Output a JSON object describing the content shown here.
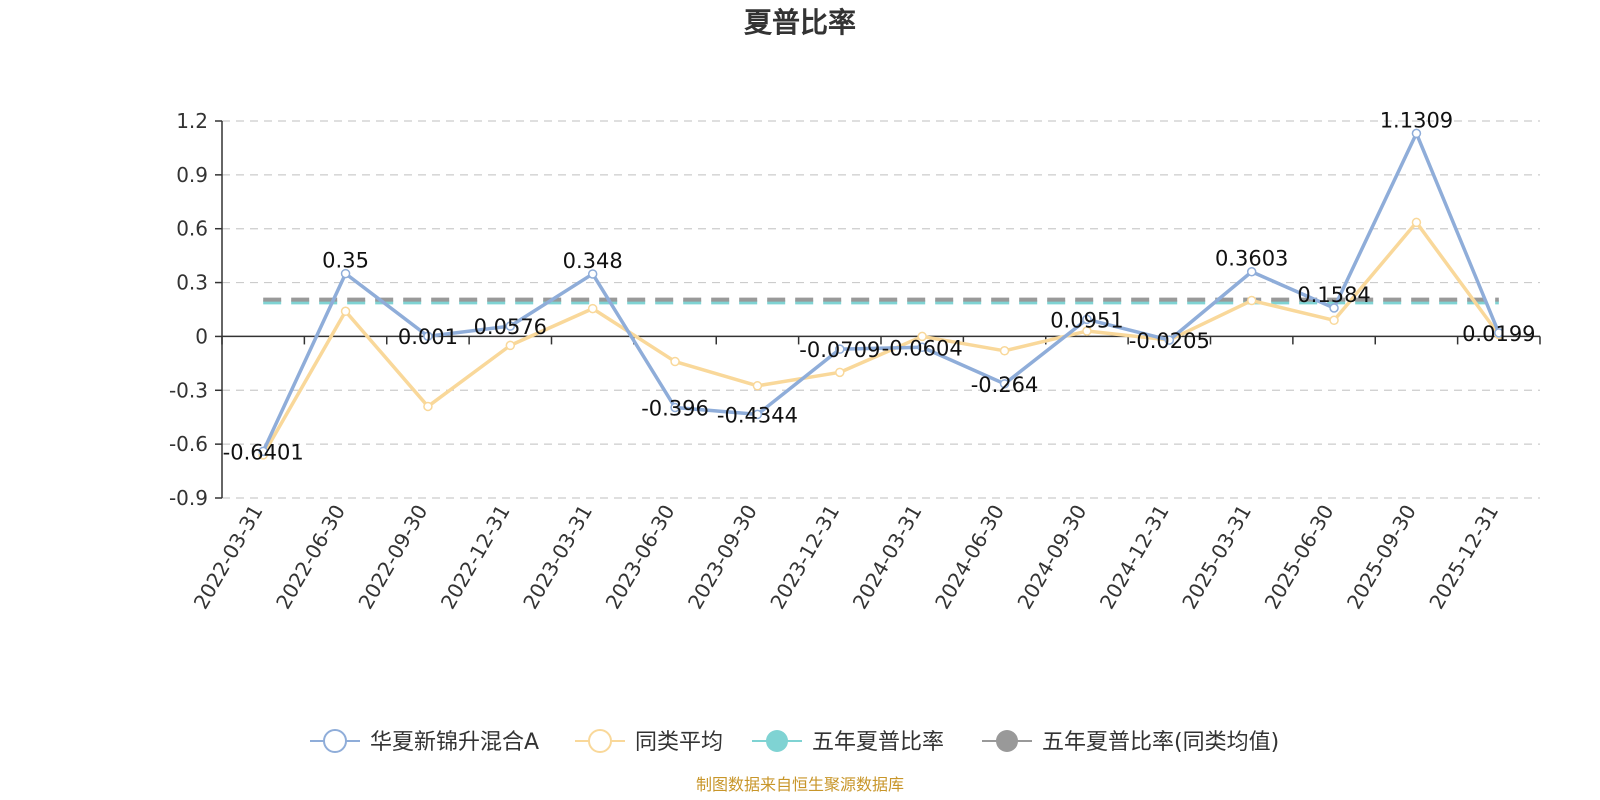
{
  "chart_data": {
    "type": "line",
    "title": "夏普比率",
    "categories": [
      "2022-03-31",
      "2022-06-30",
      "2022-09-30",
      "2022-12-31",
      "2023-03-31",
      "2023-06-30",
      "2023-09-30",
      "2023-12-31",
      "2024-03-31",
      "2024-06-30",
      "2024-09-30",
      "2024-12-31",
      "2025-03-31",
      "2025-06-30",
      "2025-09-30",
      "2025-12-31"
    ],
    "yticks": [
      "1.2",
      "0.9",
      "0.6",
      "0.3",
      "0",
      "-0.3",
      "-0.6",
      "-0.9"
    ],
    "ylim": [
      -0.9,
      1.2
    ],
    "grid": true,
    "legend_position": "bottom",
    "series": [
      {
        "name": "华夏新锦升混合A",
        "color": "#8fadd9",
        "values": [
          -0.6401,
          0.35,
          0.001,
          0.0576,
          0.348,
          -0.396,
          -0.4344,
          -0.0709,
          -0.0604,
          -0.264,
          0.0951,
          -0.0205,
          0.3603,
          0.1584,
          1.1309,
          0.0199
        ],
        "labels": [
          "-0.6401",
          "0.35",
          "0.001",
          "0.0576",
          "0.348",
          "-0.396",
          "-0.4344",
          "-0.0709",
          "-0.0604",
          "-0.264",
          "0.0951",
          "-0.0205",
          "0.3603",
          "0.1584",
          "1.1309",
          "0.0199"
        ]
      },
      {
        "name": "同类平均",
        "color": "#f9d89a",
        "values": [
          -0.66,
          0.14,
          -0.39,
          -0.05,
          0.155,
          -0.14,
          -0.275,
          -0.2,
          0.0,
          -0.08,
          0.03,
          -0.02,
          0.2,
          0.09,
          0.635,
          0.01
        ]
      },
      {
        "name": "五年夏普比率",
        "color": "#7fd3d3",
        "values": [
          0.19,
          0.19,
          0.19,
          0.19,
          0.19,
          0.19,
          0.19,
          0.19,
          0.19,
          0.19,
          0.19,
          0.19,
          0.19,
          0.19,
          0.19,
          0.19
        ]
      },
      {
        "name": "五年夏普比率(同类均值)",
        "color": "#999999",
        "values": [
          0.205,
          0.205,
          0.205,
          0.205,
          0.205,
          0.205,
          0.205,
          0.205,
          0.205,
          0.205,
          0.205,
          0.205,
          0.205,
          0.205,
          0.205,
          0.205
        ]
      }
    ]
  },
  "source": "制图数据来自恒生聚源数据库"
}
